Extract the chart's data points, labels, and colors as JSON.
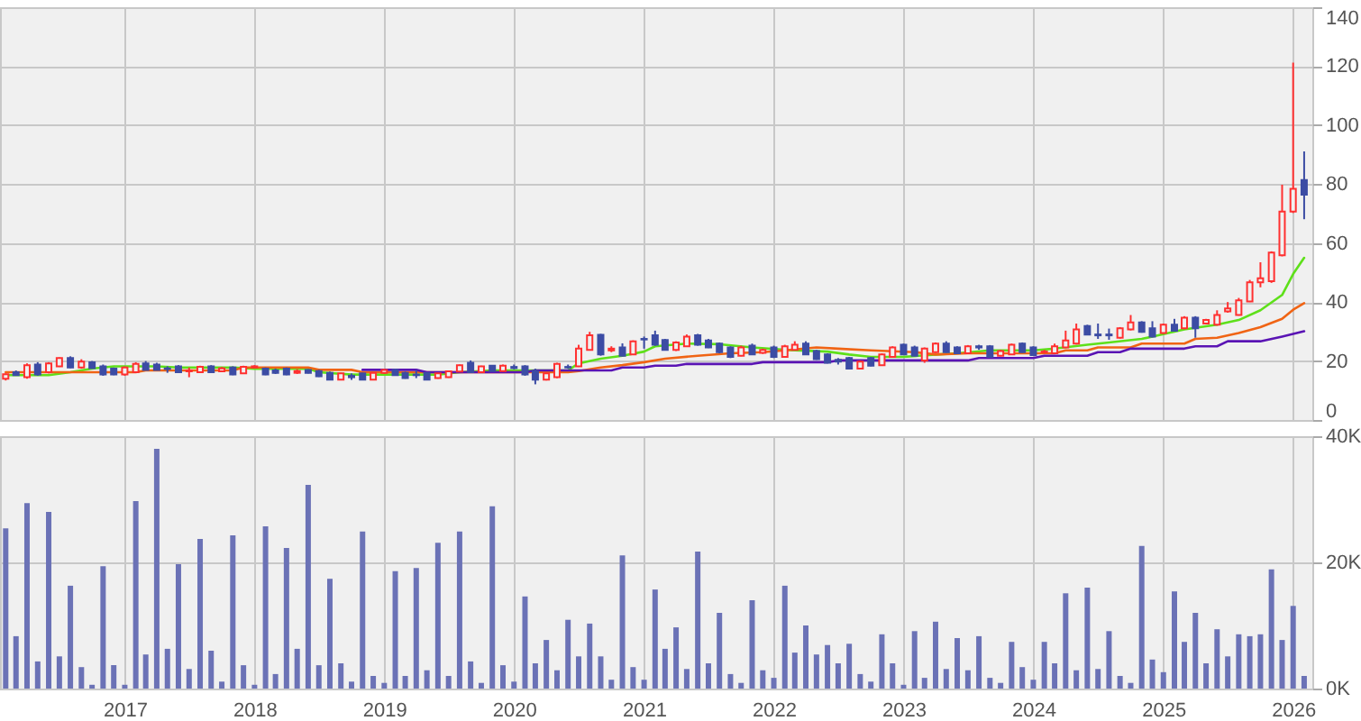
{
  "chart_data": [
    {
      "type": "candlestick",
      "x": [
        "2016-02",
        "2016-03",
        "2016-04",
        "2016-05",
        "2016-06",
        "2016-07",
        "2016-08",
        "2016-09",
        "2016-10",
        "2016-11",
        "2016-12",
        "2017-01",
        "2017-02",
        "2017-03",
        "2017-04",
        "2017-05",
        "2017-06",
        "2017-07",
        "2017-08",
        "2017-09",
        "2017-10",
        "2017-11",
        "2017-12",
        "2018-01",
        "2018-02",
        "2018-03",
        "2018-04",
        "2018-05",
        "2018-06",
        "2018-07",
        "2018-08",
        "2018-09",
        "2018-10",
        "2018-11",
        "2018-12",
        "2019-01",
        "2019-02",
        "2019-03",
        "2019-04",
        "2019-05",
        "2019-06",
        "2019-07",
        "2019-08",
        "2019-09",
        "2019-10",
        "2019-11",
        "2019-12",
        "2020-01",
        "2020-02",
        "2020-03",
        "2020-04",
        "2020-05",
        "2020-06",
        "2020-07",
        "2020-08",
        "2020-09",
        "2020-10",
        "2020-11",
        "2020-12",
        "2021-01",
        "2021-02",
        "2021-03",
        "2021-04",
        "2021-05",
        "2021-06",
        "2021-07",
        "2021-08",
        "2021-09",
        "2021-10",
        "2021-11",
        "2021-12",
        "2022-01",
        "2022-02",
        "2022-03",
        "2022-04",
        "2022-05",
        "2022-06",
        "2022-07",
        "2022-08",
        "2022-09",
        "2022-10",
        "2022-11",
        "2022-12",
        "2023-01",
        "2023-02",
        "2023-03",
        "2023-04",
        "2023-05",
        "2023-06",
        "2023-07",
        "2023-08",
        "2023-09",
        "2023-10",
        "2023-11",
        "2023-12",
        "2024-01",
        "2024-02",
        "2024-03",
        "2024-04",
        "2024-05",
        "2024-06",
        "2024-07",
        "2024-08",
        "2024-09",
        "2024-10",
        "2024-11",
        "2024-12",
        "2025-01",
        "2025-02",
        "2025-03",
        "2025-04",
        "2025-05",
        "2025-06",
        "2025-07",
        "2025-08",
        "2025-09",
        "2025-10",
        "2025-11",
        "2025-12",
        "2026-01",
        "2026-02"
      ],
      "ohlc": [
        [
          14,
          15.8,
          13.4,
          15.5
        ],
        [
          16.2,
          16.8,
          15,
          15.2
        ],
        [
          14.5,
          19.2,
          14,
          18.6
        ],
        [
          18.8,
          19.6,
          15,
          15.4
        ],
        [
          16.2,
          19.6,
          15.8,
          19.2
        ],
        [
          18.2,
          21.2,
          18,
          21
        ],
        [
          21,
          21.6,
          17.6,
          17.8
        ],
        [
          17.8,
          20.6,
          17.4,
          19.8
        ],
        [
          19.6,
          20,
          17.4,
          17.6
        ],
        [
          18.2,
          18.8,
          15,
          15.4
        ],
        [
          17.4,
          17.8,
          15.2,
          15.4
        ],
        [
          15.4,
          18.2,
          15,
          17.8
        ],
        [
          16.2,
          19.6,
          16,
          19
        ],
        [
          19.2,
          20,
          16.8,
          17
        ],
        [
          18.8,
          19.4,
          16.8,
          17
        ],
        [
          17.5,
          18.2,
          16,
          17.3
        ],
        [
          18.2,
          18.6,
          16,
          16.2
        ],
        [
          16.5,
          17.8,
          14.5,
          16.8
        ],
        [
          16.2,
          18.4,
          16,
          18
        ],
        [
          18.2,
          18.6,
          16,
          16.2
        ],
        [
          16.5,
          18,
          16.2,
          17.5
        ],
        [
          17.8,
          18.2,
          15.2,
          15.4
        ],
        [
          15.8,
          18.4,
          15.6,
          18
        ],
        [
          17.8,
          18.6,
          17.4,
          18.2
        ],
        [
          17.4,
          17.8,
          15.2,
          15.4
        ],
        [
          16.8,
          17.4,
          15.6,
          16
        ],
        [
          17.4,
          17.8,
          15.2,
          15.4
        ],
        [
          16,
          17.2,
          15.6,
          16.6
        ],
        [
          17,
          17.2,
          15.8,
          16
        ],
        [
          16.6,
          17,
          14.6,
          14.8
        ],
        [
          16,
          16.4,
          13.5,
          13.7
        ],
        [
          13.7,
          16,
          13.5,
          15.8
        ],
        [
          15,
          15.8,
          13.6,
          14.5
        ],
        [
          15.8,
          16,
          13.5,
          13.7
        ],
        [
          13.7,
          16.2,
          13.5,
          16
        ],
        [
          16,
          17.4,
          15.6,
          17
        ],
        [
          17,
          17.4,
          15,
          15.2
        ],
        [
          16,
          16.4,
          14,
          14.2
        ],
        [
          15.4,
          17,
          14.2,
          15.2
        ],
        [
          16,
          16.2,
          13.5,
          13.7
        ],
        [
          14.2,
          16,
          14,
          15.8
        ],
        [
          14.5,
          16.8,
          14.3,
          16.5
        ],
        [
          16.4,
          18.8,
          16.2,
          18.6
        ],
        [
          19.4,
          20.2,
          16,
          16.2
        ],
        [
          16.2,
          18.4,
          16,
          18.2
        ],
        [
          18.4,
          18.6,
          16.4,
          16.6
        ],
        [
          16.6,
          18.8,
          16.4,
          18.4
        ],
        [
          18,
          18.8,
          17.2,
          17.6
        ],
        [
          18.2,
          18.6,
          15,
          15.4
        ],
        [
          16.6,
          17.4,
          12.1,
          13.7
        ],
        [
          13.7,
          16,
          13.4,
          15.8
        ],
        [
          14.5,
          19.4,
          14.2,
          19
        ],
        [
          18,
          18.8,
          17.4,
          17.8
        ],
        [
          18.2,
          25.5,
          18,
          24.2
        ],
        [
          23.8,
          29.9,
          23.6,
          28.7
        ],
        [
          28.9,
          29.2,
          21.8,
          22.2
        ],
        [
          23.6,
          25,
          23,
          24.2
        ],
        [
          24.6,
          26,
          21.6,
          21.8
        ],
        [
          22.2,
          27,
          22,
          26.7
        ],
        [
          27.5,
          28.3,
          24.2,
          27.3
        ],
        [
          28.7,
          30.3,
          25.2,
          25.5
        ],
        [
          27.1,
          27.5,
          23.6,
          23.8
        ],
        [
          23.8,
          26.7,
          23.4,
          26.3
        ],
        [
          25,
          29,
          24.8,
          28.3
        ],
        [
          28.7,
          29.2,
          25.2,
          25.5
        ],
        [
          27,
          27.5,
          24.4,
          24.6
        ],
        [
          25.9,
          26.3,
          22.6,
          23
        ],
        [
          24.6,
          25,
          21,
          21.4
        ],
        [
          21.8,
          25.2,
          21.6,
          24.6
        ],
        [
          25.2,
          25.9,
          22,
          22.2
        ],
        [
          22.8,
          24.2,
          22.4,
          23.8
        ],
        [
          24.6,
          25.2,
          21,
          21.4
        ],
        [
          21.4,
          25.5,
          21.2,
          25
        ],
        [
          23.8,
          26.7,
          23.6,
          25.5
        ],
        [
          25.9,
          26.7,
          22,
          22.2
        ],
        [
          23.4,
          23.8,
          20.4,
          20.6
        ],
        [
          22.2,
          22.6,
          19.2,
          19.4
        ],
        [
          20.4,
          21,
          18.8,
          19.8
        ],
        [
          21,
          21.4,
          17.2,
          17.4
        ],
        [
          17.4,
          20.2,
          17.2,
          19.8
        ],
        [
          21,
          21.4,
          18.2,
          18.4
        ],
        [
          18.6,
          22.6,
          18.4,
          22.2
        ],
        [
          21.4,
          25,
          21.2,
          24.6
        ],
        [
          25.5,
          25.9,
          22,
          22.2
        ],
        [
          24.6,
          25.2,
          21.6,
          21.8
        ],
        [
          20.2,
          24.6,
          19.4,
          24.2
        ],
        [
          23,
          26.3,
          22.8,
          25.9
        ],
        [
          25.9,
          26.7,
          22.8,
          23
        ],
        [
          24.6,
          25,
          22.4,
          22.6
        ],
        [
          22.6,
          25.4,
          22.4,
          25
        ],
        [
          25,
          25.5,
          23.8,
          24.6
        ],
        [
          25,
          25.4,
          21.2,
          21.4
        ],
        [
          21.8,
          23.8,
          21.6,
          23.4
        ],
        [
          22.2,
          25.9,
          22,
          25.5
        ],
        [
          25.9,
          26.3,
          22.8,
          23
        ],
        [
          24.6,
          25,
          21.8,
          22
        ],
        [
          23,
          23.8,
          22.6,
          23.2
        ],
        [
          22.6,
          25.9,
          22.4,
          25
        ],
        [
          24.6,
          30.3,
          24.4,
          27
        ],
        [
          25.9,
          32.7,
          25.6,
          30.7
        ],
        [
          31.9,
          32.3,
          28.8,
          29
        ],
        [
          29,
          32.7,
          27.5,
          28.7
        ],
        [
          29,
          31,
          27.2,
          28.7
        ],
        [
          27.9,
          31.5,
          27.6,
          31.1
        ],
        [
          30.7,
          35.6,
          30.4,
          33.1
        ],
        [
          33.1,
          33.5,
          29.6,
          29.9
        ],
        [
          31.1,
          33.5,
          28,
          28.3
        ],
        [
          29.5,
          32.7,
          29.2,
          32.3
        ],
        [
          32.3,
          34.3,
          30,
          30.3
        ],
        [
          31.1,
          35.2,
          30.8,
          34.7
        ],
        [
          34.7,
          35.2,
          27.9,
          31.1
        ],
        [
          32.7,
          34.3,
          32.4,
          33.9
        ],
        [
          32.3,
          37.2,
          32,
          35.6
        ],
        [
          36.8,
          40,
          36.4,
          37.8
        ],
        [
          35.6,
          41.4,
          35.4,
          40.6
        ],
        [
          40.2,
          47.5,
          40,
          46.7
        ],
        [
          46.7,
          53.5,
          45,
          48.1
        ],
        [
          47.1,
          57.2,
          46.5,
          56.8
        ],
        [
          55.9,
          79.8,
          55.5,
          70.7
        ],
        [
          70.7,
          121.2,
          70.2,
          78.4
        ],
        [
          81.4,
          91.1,
          68.1,
          76.4
        ]
      ],
      "colors": [
        "#ff3030",
        "#3c4ca4",
        "#ff3030",
        "#3c4ca4",
        "#ff3030",
        "#ff3030",
        "#3c4ca4",
        "#ff3030",
        "#3c4ca4",
        "#3c4ca4",
        "#3c4ca4",
        "#ff3030",
        "#ff3030",
        "#3c4ca4",
        "#3c4ca4",
        "#3c4ca4",
        "#3c4ca4",
        "#ff3030",
        "#ff3030",
        "#3c4ca4",
        "#ff3030",
        "#3c4ca4",
        "#ff3030",
        "#ff3030",
        "#3c4ca4",
        "#3c4ca4",
        "#3c4ca4",
        "#ff3030",
        "#3c4ca4",
        "#3c4ca4",
        "#3c4ca4",
        "#ff3030",
        "#3c4ca4",
        "#3c4ca4",
        "#ff3030",
        "#ff3030",
        "#3c4ca4",
        "#3c4ca4",
        "#3c4ca4",
        "#3c4ca4",
        "#ff3030",
        "#ff3030",
        "#ff3030",
        "#3c4ca4",
        "#ff3030",
        "#3c4ca4",
        "#ff3030",
        "#3c4ca4",
        "#3c4ca4",
        "#3c4ca4",
        "#ff3030",
        "#ff3030",
        "#3c4ca4",
        "#ff3030",
        "#ff3030",
        "#3c4ca4",
        "#ff3030",
        "#3c4ca4",
        "#ff3030",
        "#3c4ca4",
        "#3c4ca4",
        "#3c4ca4",
        "#ff3030",
        "#ff3030",
        "#3c4ca4",
        "#3c4ca4",
        "#3c4ca4",
        "#3c4ca4",
        "#ff3030",
        "#3c4ca4",
        "#ff3030",
        "#3c4ca4",
        "#ff3030",
        "#ff3030",
        "#3c4ca4",
        "#3c4ca4",
        "#3c4ca4",
        "#3c4ca4",
        "#3c4ca4",
        "#ff3030",
        "#3c4ca4",
        "#ff3030",
        "#ff3030",
        "#3c4ca4",
        "#3c4ca4",
        "#ff3030",
        "#ff3030",
        "#3c4ca4",
        "#3c4ca4",
        "#ff3030",
        "#3c4ca4",
        "#3c4ca4",
        "#ff3030",
        "#ff3030",
        "#3c4ca4",
        "#3c4ca4",
        "#ff3030",
        "#ff3030",
        "#ff3030",
        "#ff3030",
        "#3c4ca4",
        "#3c4ca4",
        "#3c4ca4",
        "#ff3030",
        "#ff3030",
        "#3c4ca4",
        "#3c4ca4",
        "#ff3030",
        "#3c4ca4",
        "#ff3030",
        "#3c4ca4",
        "#ff3030",
        "#ff3030",
        "#ff3030",
        "#ff3030",
        "#ff3030",
        "#ff3030",
        "#ff3030",
        "#ff3030",
        "#ff3030",
        "#3c4ca4"
      ],
      "series": [
        {
          "type": "line",
          "color": "#5ee01a",
          "x": [
            "2016-02",
            "2016-06",
            "2016-08",
            "2016-10",
            "2016-12",
            "2017-04",
            "2017-06",
            "2017-11",
            "2018-01",
            "2018-06",
            "2018-07",
            "2018-10",
            "2019-06",
            "2019-08",
            "2019-11",
            "2020-06",
            "2020-07",
            "2020-09",
            "2020-11",
            "2021-01",
            "2021-02",
            "2021-05",
            "2021-08",
            "2021-11",
            "2022-02",
            "2022-06",
            "2022-08",
            "2022-10",
            "2023-01",
            "2023-04",
            "2023-06",
            "2023-09",
            "2024-01",
            "2024-03",
            "2024-06",
            "2024-08",
            "2024-11",
            "2025-01",
            "2025-03",
            "2025-06",
            "2025-08",
            "2025-10",
            "2025-12",
            "2026-01",
            "2026-02"
          ],
          "values": [
            15.2,
            15.2,
            16.2,
            17.4,
            18.2,
            18.2,
            17.8,
            17.8,
            17.4,
            17.4,
            16.2,
            15.4,
            15.4,
            16.2,
            16.8,
            16.8,
            19.2,
            20.8,
            21.8,
            23.2,
            25,
            25.9,
            25.7,
            24.6,
            23.8,
            23.2,
            22.2,
            21.4,
            21.4,
            22.2,
            22.6,
            23.6,
            23.6,
            24.2,
            25.5,
            26.3,
            27.5,
            29.1,
            30.7,
            32.3,
            33.9,
            37.2,
            42.4,
            49.5,
            55
          ]
        },
        {
          "type": "line",
          "color": "#f06414",
          "x": [
            "2016-02",
            "2017-02",
            "2017-03",
            "2017-11",
            "2017-12",
            "2018-06",
            "2018-07",
            "2018-10",
            "2018-11",
            "2020-06",
            "2020-07",
            "2020-09",
            "2020-11",
            "2021-01",
            "2021-03",
            "2021-06",
            "2021-09",
            "2021-12",
            "2022-02",
            "2022-05",
            "2022-07",
            "2022-10",
            "2023-02",
            "2023-04",
            "2023-07",
            "2024-03",
            "2024-04",
            "2024-06",
            "2024-07",
            "2024-10",
            "2024-11",
            "2025-03",
            "2025-04",
            "2025-06",
            "2025-08",
            "2025-10",
            "2025-12",
            "2026-01",
            "2026-02"
          ],
          "values": [
            16.2,
            16.2,
            16.8,
            16.8,
            17.8,
            17.8,
            17,
            17,
            16.2,
            16.2,
            16.6,
            17.8,
            18.6,
            19.6,
            20.8,
            21.8,
            22.6,
            23,
            23.6,
            24.6,
            24.2,
            23.6,
            23,
            22.2,
            22.6,
            22.6,
            23.6,
            23.6,
            24.6,
            24.6,
            25.9,
            25.9,
            27.5,
            27.9,
            29.5,
            31.5,
            34.3,
            37.4,
            39.6
          ]
        },
        {
          "type": "line",
          "color": "#5a14b4",
          "x": [
            "2018-11",
            "2019-04",
            "2019-05",
            "2020-02",
            "2020-03",
            "2020-10",
            "2020-11",
            "2021-01",
            "2021-02",
            "2021-04",
            "2021-05",
            "2021-11",
            "2021-12",
            "2022-06",
            "2022-07",
            "2023-07",
            "2023-08",
            "2024-01",
            "2024-02",
            "2024-06",
            "2024-07",
            "2024-09",
            "2024-10",
            "2025-03",
            "2025-04",
            "2025-06",
            "2025-07",
            "2025-10",
            "2025-12",
            "2026-02"
          ],
          "values": [
            17,
            17,
            16.2,
            16.2,
            16.8,
            16.8,
            17.8,
            17.8,
            18.4,
            18.4,
            19,
            19,
            19.6,
            19.6,
            20.2,
            20.2,
            21,
            21,
            21.8,
            21.8,
            23,
            23,
            24.2,
            24.2,
            25,
            25,
            26.7,
            26.7,
            28.3,
            30.1
          ]
        }
      ],
      "xlim": [
        "2016-01-16",
        "2026-02-24"
      ],
      "xticks": [
        "2017",
        "2018",
        "2019",
        "2020",
        "2021",
        "2022",
        "2023",
        "2024",
        "2025",
        "2026"
      ],
      "ylim": [
        0,
        140
      ],
      "yticks": [
        0,
        20,
        40,
        60,
        80,
        100,
        120,
        140
      ],
      "grid": true,
      "tick_labels": "y"
    },
    {
      "type": "bar",
      "color": "#6b72b6",
      "x": [
        "2016-02",
        "2016-03",
        "2016-04",
        "2016-05",
        "2016-06",
        "2016-07",
        "2016-08",
        "2016-09",
        "2016-10",
        "2016-11",
        "2016-12",
        "2017-01",
        "2017-02",
        "2017-03",
        "2017-04",
        "2017-05",
        "2017-06",
        "2017-07",
        "2017-08",
        "2017-09",
        "2017-10",
        "2017-11",
        "2017-12",
        "2018-01",
        "2018-02",
        "2018-03",
        "2018-04",
        "2018-05",
        "2018-06",
        "2018-07",
        "2018-08",
        "2018-09",
        "2018-10",
        "2018-11",
        "2018-12",
        "2019-01",
        "2019-02",
        "2019-03",
        "2019-04",
        "2019-05",
        "2019-06",
        "2019-07",
        "2019-08",
        "2019-09",
        "2019-10",
        "2019-11",
        "2019-12",
        "2020-01",
        "2020-02",
        "2020-03",
        "2020-04",
        "2020-05",
        "2020-06",
        "2020-07",
        "2020-08",
        "2020-09",
        "2020-10",
        "2020-11",
        "2020-12",
        "2021-01",
        "2021-02",
        "2021-03",
        "2021-04",
        "2021-05",
        "2021-06",
        "2021-07",
        "2021-08",
        "2021-09",
        "2021-10",
        "2021-11",
        "2021-12",
        "2022-01",
        "2022-02",
        "2022-03",
        "2022-04",
        "2022-05",
        "2022-06",
        "2022-07",
        "2022-08",
        "2022-09",
        "2022-10",
        "2022-11",
        "2022-12",
        "2023-01",
        "2023-02",
        "2023-03",
        "2023-04",
        "2023-05",
        "2023-06",
        "2023-07",
        "2023-08",
        "2023-09",
        "2023-10",
        "2023-11",
        "2023-12",
        "2024-01",
        "2024-02",
        "2024-03",
        "2024-04",
        "2024-05",
        "2024-06",
        "2024-07",
        "2024-08",
        "2024-09",
        "2024-10",
        "2024-11",
        "2024-12",
        "2025-01",
        "2025-02",
        "2025-03",
        "2025-04",
        "2025-05",
        "2025-06",
        "2025-07",
        "2025-08",
        "2025-09",
        "2025-10",
        "2025-11",
        "2025-12",
        "2026-01",
        "2026-02"
      ],
      "values": [
        25400,
        8300,
        29400,
        4300,
        28000,
        5100,
        16300,
        3400,
        600,
        19400,
        3700,
        600,
        29700,
        5400,
        38000,
        6300,
        19700,
        3100,
        23700,
        6000,
        1100,
        24300,
        3700,
        600,
        25700,
        2300,
        22300,
        6300,
        32300,
        3700,
        17400,
        4000,
        1100,
        24900,
        2000,
        900,
        18600,
        2000,
        19100,
        2900,
        23100,
        2000,
        24900,
        4300,
        900,
        28900,
        3700,
        1100,
        14600,
        4000,
        7700,
        2900,
        10900,
        5100,
        10300,
        5100,
        1400,
        21100,
        3400,
        1400,
        15700,
        6300,
        9700,
        3100,
        21700,
        4000,
        12000,
        2300,
        900,
        14000,
        2900,
        1700,
        16300,
        5700,
        10000,
        5400,
        6900,
        4000,
        7100,
        2300,
        1100,
        8600,
        4000,
        600,
        9100,
        1700,
        10600,
        3100,
        8000,
        2900,
        8300,
        1700,
        900,
        7400,
        3400,
        1400,
        7400,
        4000,
        15100,
        2900,
        16000,
        3100,
        9100,
        2000,
        900,
        22600,
        4600,
        2600,
        15400,
        7400,
        12000,
        4000,
        9400,
        5100,
        8600,
        8300,
        8600,
        18900,
        7700,
        13100,
        2000
      ],
      "xlim": [
        "2016-01-16",
        "2026-02-24"
      ],
      "xticks": [
        "2017",
        "2018",
        "2019",
        "2020",
        "2021",
        "2022",
        "2023",
        "2024",
        "2025",
        "2026"
      ],
      "ylim": [
        0,
        40000
      ],
      "yticks": [
        {
          "value": 0,
          "label": "0K"
        },
        {
          "value": 20000,
          "label": "20K"
        },
        {
          "value": 40000,
          "label": "40K"
        }
      ],
      "grid": true
    }
  ]
}
